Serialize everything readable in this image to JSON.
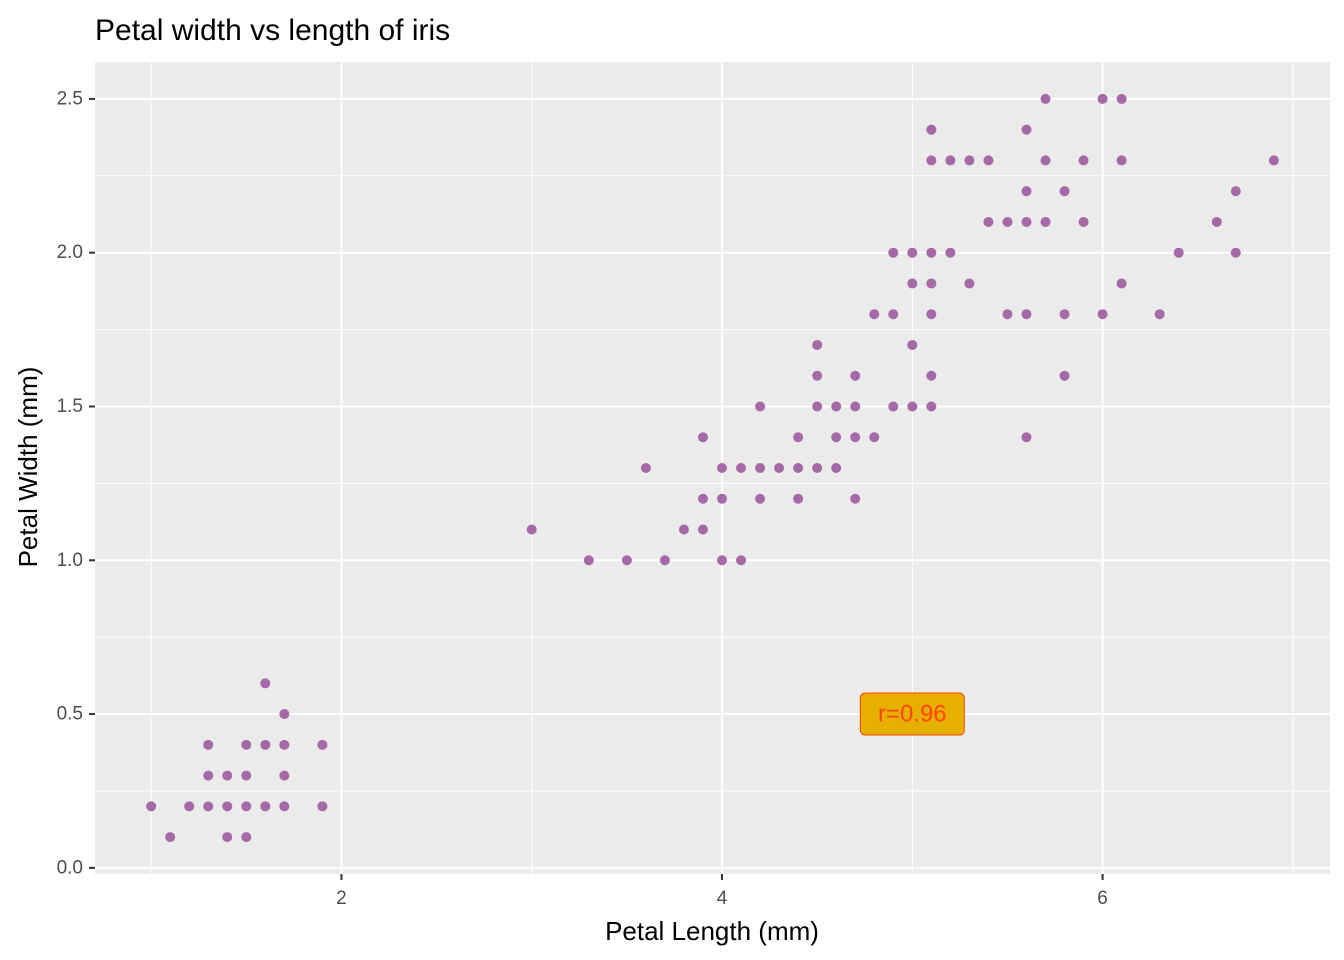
{
  "chart_data": {
    "type": "scatter",
    "title": "Petal width vs length of iris",
    "xlabel": "Petal Length (mm)",
    "ylabel": "Petal Width (mm)",
    "xlim": [
      0.705,
      7.195
    ],
    "ylim": [
      -0.02,
      2.62
    ],
    "x_ticks": [
      2,
      4,
      6
    ],
    "x_tick_labels": [
      "2",
      "4",
      "6"
    ],
    "y_ticks": [
      0.0,
      0.5,
      1.0,
      1.5,
      2.0,
      2.5
    ],
    "y_tick_labels": [
      "0.0",
      "0.5",
      "1.0",
      "1.5",
      "2.0",
      "2.5"
    ],
    "grid": true,
    "point_color": "#A569A8",
    "panel_background": "#EBEBEB",
    "annotation": {
      "text": "r=0.96",
      "x": 5.0,
      "y": 0.5,
      "fill": "#E6B000",
      "text_color": "#FF4500"
    },
    "points": [
      [
        1.0,
        0.2
      ],
      [
        1.1,
        0.1
      ],
      [
        1.2,
        0.2
      ],
      [
        1.3,
        0.2
      ],
      [
        1.3,
        0.3
      ],
      [
        1.3,
        0.4
      ],
      [
        1.4,
        0.2
      ],
      [
        1.4,
        0.3
      ],
      [
        1.4,
        0.1
      ],
      [
        1.5,
        0.2
      ],
      [
        1.5,
        0.3
      ],
      [
        1.5,
        0.4
      ],
      [
        1.5,
        0.1
      ],
      [
        1.6,
        0.2
      ],
      [
        1.6,
        0.4
      ],
      [
        1.6,
        0.6
      ],
      [
        1.7,
        0.2
      ],
      [
        1.7,
        0.3
      ],
      [
        1.7,
        0.4
      ],
      [
        1.7,
        0.5
      ],
      [
        1.9,
        0.2
      ],
      [
        1.9,
        0.4
      ],
      [
        3.0,
        1.1
      ],
      [
        3.3,
        1.0
      ],
      [
        3.5,
        1.0
      ],
      [
        3.6,
        1.3
      ],
      [
        3.7,
        1.0
      ],
      [
        3.8,
        1.1
      ],
      [
        3.9,
        1.1
      ],
      [
        3.9,
        1.2
      ],
      [
        3.9,
        1.4
      ],
      [
        4.0,
        1.0
      ],
      [
        4.0,
        1.2
      ],
      [
        4.0,
        1.3
      ],
      [
        4.1,
        1.0
      ],
      [
        4.1,
        1.3
      ],
      [
        4.2,
        1.2
      ],
      [
        4.2,
        1.3
      ],
      [
        4.2,
        1.5
      ],
      [
        4.3,
        1.3
      ],
      [
        4.4,
        1.2
      ],
      [
        4.4,
        1.3
      ],
      [
        4.4,
        1.4
      ],
      [
        4.5,
        1.3
      ],
      [
        4.5,
        1.5
      ],
      [
        4.5,
        1.6
      ],
      [
        4.5,
        1.7
      ],
      [
        4.6,
        1.3
      ],
      [
        4.6,
        1.4
      ],
      [
        4.6,
        1.5
      ],
      [
        4.7,
        1.2
      ],
      [
        4.7,
        1.4
      ],
      [
        4.7,
        1.5
      ],
      [
        4.7,
        1.6
      ],
      [
        4.8,
        1.4
      ],
      [
        4.8,
        1.8
      ],
      [
        4.9,
        1.5
      ],
      [
        4.9,
        1.8
      ],
      [
        4.9,
        2.0
      ],
      [
        5.0,
        1.5
      ],
      [
        5.0,
        1.7
      ],
      [
        5.0,
        1.9
      ],
      [
        5.0,
        2.0
      ],
      [
        5.1,
        1.5
      ],
      [
        5.1,
        1.6
      ],
      [
        5.1,
        1.8
      ],
      [
        5.1,
        1.9
      ],
      [
        5.1,
        2.0
      ],
      [
        5.1,
        2.3
      ],
      [
        5.1,
        2.4
      ],
      [
        5.2,
        2.0
      ],
      [
        5.2,
        2.3
      ],
      [
        5.3,
        1.9
      ],
      [
        5.3,
        2.3
      ],
      [
        5.4,
        2.1
      ],
      [
        5.4,
        2.3
      ],
      [
        5.5,
        1.8
      ],
      [
        5.5,
        2.1
      ],
      [
        5.6,
        1.4
      ],
      [
        5.6,
        1.8
      ],
      [
        5.6,
        2.1
      ],
      [
        5.6,
        2.2
      ],
      [
        5.6,
        2.4
      ],
      [
        5.7,
        2.1
      ],
      [
        5.7,
        2.3
      ],
      [
        5.7,
        2.5
      ],
      [
        5.8,
        1.6
      ],
      [
        5.8,
        1.8
      ],
      [
        5.8,
        2.2
      ],
      [
        5.9,
        2.1
      ],
      [
        5.9,
        2.3
      ],
      [
        6.0,
        1.8
      ],
      [
        6.0,
        2.5
      ],
      [
        6.1,
        1.9
      ],
      [
        6.1,
        2.3
      ],
      [
        6.1,
        2.5
      ],
      [
        6.3,
        1.8
      ],
      [
        6.4,
        2.0
      ],
      [
        6.6,
        2.1
      ],
      [
        6.7,
        2.0
      ],
      [
        6.7,
        2.2
      ],
      [
        6.9,
        2.3
      ]
    ]
  }
}
